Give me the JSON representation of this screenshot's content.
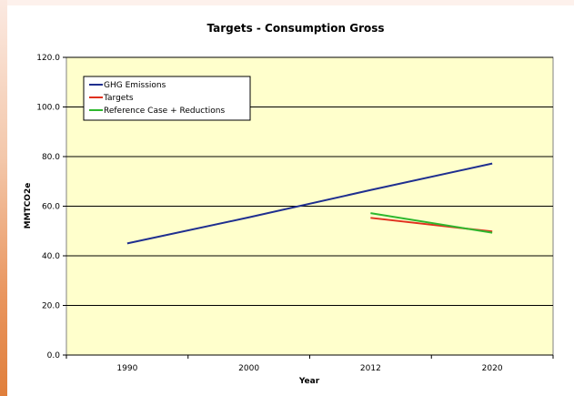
{
  "chart_data": {
    "type": "line",
    "title": "Targets - Consumption Gross",
    "xlabel": "Year",
    "ylabel": "MMTCO2e",
    "categories": [
      "1990",
      "2000",
      "2012",
      "2020"
    ],
    "ylim": [
      0,
      120
    ],
    "yticks": [
      "0.0",
      "20.0",
      "40.0",
      "60.0",
      "80.0",
      "100.0",
      "120.0"
    ],
    "grid": true,
    "legend_position": "top-left",
    "series": [
      {
        "name": "GHG Emissions",
        "color": "#1f2f8f",
        "values": [
          45.0,
          55.5,
          66.5,
          77.2
        ]
      },
      {
        "name": "Targets",
        "color": "#e0301e",
        "values": [
          null,
          null,
          55.3,
          49.8
        ]
      },
      {
        "name": "Reference Case + Reductions",
        "color": "#2eb82e",
        "values": [
          null,
          null,
          57.2,
          49.3
        ]
      }
    ]
  },
  "colors": {
    "plot_background": "#ffffcc",
    "grid_line": "#000000"
  }
}
